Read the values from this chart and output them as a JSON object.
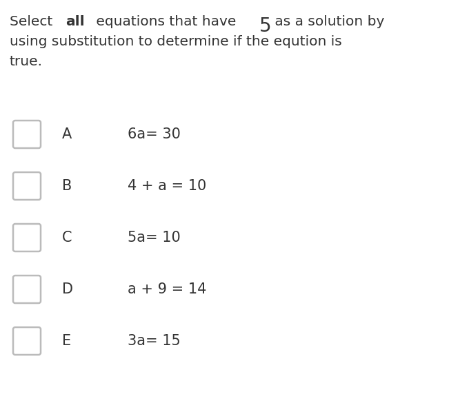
{
  "background_color": "#ffffff",
  "text_color": "#333333",
  "checkbox_edge_color": "#bbbbbb",
  "font_size_title": 14.5,
  "font_size_number": 20,
  "font_size_options": 15,
  "options": [
    {
      "label": "A",
      "equation": "6a= 30"
    },
    {
      "label": "B",
      "equation": "4 + a = 10"
    },
    {
      "label": "C",
      "equation": "5a= 10"
    },
    {
      "label": "D",
      "equation": "a + 9 = 14"
    },
    {
      "label": "E",
      "equation": "3a= 15"
    }
  ],
  "title_seg1": "Select ",
  "title_seg2": "all",
  "title_seg3": " equations that have ",
  "title_seg4": "5",
  "title_seg5": " as a solution by",
  "title_line2": "using substitution to determine if the eqution is",
  "title_line3": "true.",
  "fig_width": 6.51,
  "fig_height": 5.85,
  "dpi": 100
}
